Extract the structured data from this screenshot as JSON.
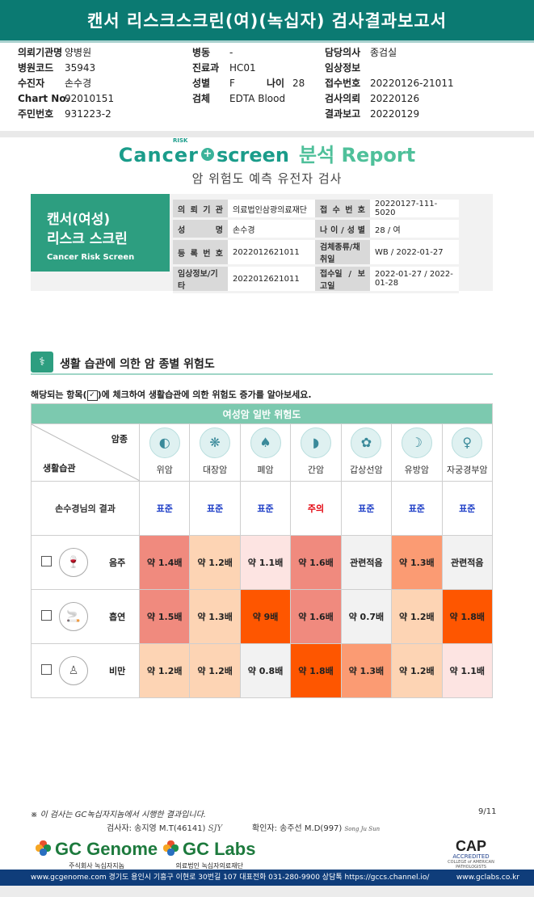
{
  "header": {
    "title": "캔서 리스크스크린(여)(녹십자) 검사결과보고서"
  },
  "patient_block": {
    "col1": [
      {
        "label": "의뢰기관명",
        "value": "양병원"
      },
      {
        "label": "병원코드",
        "value": "35943"
      },
      {
        "label": "수진자",
        "value": "손수경"
      },
      {
        "label": "Chart No.",
        "value": "92010151"
      },
      {
        "label": "주민번호",
        "value": "931223-2"
      }
    ],
    "col2": [
      {
        "label": "병동",
        "value": "-"
      },
      {
        "label": "진료과",
        "value": "HC01"
      },
      {
        "label": "성별",
        "value": "F"
      },
      {
        "label": "검체",
        "value": "EDTA Blood"
      }
    ],
    "age_label": "나이",
    "age_value": "28",
    "col3": [
      {
        "label": "담당의사",
        "value": "종검실"
      },
      {
        "label": "임상정보",
        "value": ""
      },
      {
        "label": "접수번호",
        "value": "20220126-21011"
      },
      {
        "label": "검사의뢰",
        "value": "20220126"
      },
      {
        "label": "결과보고",
        "value": "20220129"
      }
    ]
  },
  "report": {
    "logo_cancer": "Cancer",
    "logo_risk": "RISK",
    "logo_screen": "screen",
    "logo_report": "분석 Report",
    "subtitle": "암 위험도 예측 유전자 검사",
    "badge_title_1": "캔서(여성)",
    "badge_title_2": "리스크 스크린",
    "badge_sub": "Cancer Risk Screen",
    "info": [
      {
        "l1": "의 뢰 기 관",
        "v1": "의료법인삼광의료재단",
        "l2": "접 수 번 호",
        "v2": "20220127-111-5020"
      },
      {
        "l1": "성 명",
        "v1": "손수경",
        "l2": "나 이 / 성 별",
        "v2": "28 / 여"
      },
      {
        "l1": "등 록 번 호",
        "v1": "2022012621011",
        "l2": "검체종류/채취일",
        "v2": "WB / 2022-01-27"
      },
      {
        "l1": "임상정보/기타",
        "v1": "2022012621011",
        "l2": "접수일 / 보고일",
        "v2": "2022-01-27 / 2022-01-28"
      }
    ]
  },
  "section": {
    "title": "생활 습관에 의한 암 종별 위험도",
    "instr_pre": "해당되는 항목(",
    "instr_check": "✓",
    "instr_post": ")에 체크하여 생활습관에 의한 위험도 증가를 알아보세요."
  },
  "table": {
    "header": "여성암 일반 위험도",
    "corner_top": "암종",
    "corner_bottom": "생활습관",
    "cancers": [
      {
        "name": "위암",
        "icon": "stomach-icon",
        "glyph": "◐"
      },
      {
        "name": "대장암",
        "icon": "colon-icon",
        "glyph": "❋"
      },
      {
        "name": "폐암",
        "icon": "lung-icon",
        "glyph": "♠"
      },
      {
        "name": "간암",
        "icon": "liver-icon",
        "glyph": "◗"
      },
      {
        "name": "갑상선암",
        "icon": "thyroid-icon",
        "glyph": "✿"
      },
      {
        "name": "유방암",
        "icon": "breast-icon",
        "glyph": "☽"
      },
      {
        "name": "자궁경부암",
        "icon": "uterus-icon",
        "glyph": "♀"
      }
    ],
    "result_label": "손수경님의 결과",
    "results": [
      {
        "text": "표준",
        "status": "std"
      },
      {
        "text": "표준",
        "status": "std"
      },
      {
        "text": "표준",
        "status": "std"
      },
      {
        "text": "주의",
        "status": "warn"
      },
      {
        "text": "표준",
        "status": "std"
      },
      {
        "text": "표준",
        "status": "std"
      },
      {
        "text": "표준",
        "status": "std"
      }
    ],
    "habits": [
      {
        "name": "음주",
        "icon": "alcohol-icon",
        "glyph": "🍷",
        "cells": [
          {
            "text": "약 1.4배",
            "color": "#f08a7e"
          },
          {
            "text": "약 1.2배",
            "color": "#fdd4b4"
          },
          {
            "text": "약 1.1배",
            "color": "#fde4e2"
          },
          {
            "text": "약 1.6배",
            "color": "#f08a7e"
          },
          {
            "text": "관련적음",
            "color": "#f2f2f2"
          },
          {
            "text": "약 1.3배",
            "color": "#fb9b73"
          },
          {
            "text": "관련적음",
            "color": "#f2f2f2"
          }
        ]
      },
      {
        "name": "흡연",
        "icon": "smoking-icon",
        "glyph": "🚬",
        "cells": [
          {
            "text": "약 1.5배",
            "color": "#f08a7e"
          },
          {
            "text": "약 1.3배",
            "color": "#fdd4b4"
          },
          {
            "text": "약 9배",
            "color": "#fe5600"
          },
          {
            "text": "약 1.6배",
            "color": "#f08a7e"
          },
          {
            "text": "약 0.7배",
            "color": "#f2f2f2"
          },
          {
            "text": "약 1.2배",
            "color": "#fdd4b4"
          },
          {
            "text": "약 1.8배",
            "color": "#fe5600"
          }
        ]
      },
      {
        "name": "비만",
        "icon": "obesity-icon",
        "glyph": "♙",
        "cells": [
          {
            "text": "약 1.2배",
            "color": "#fdd4b4"
          },
          {
            "text": "약 1.2배",
            "color": "#fdd4b4"
          },
          {
            "text": "약 0.8배",
            "color": "#f2f2f2"
          },
          {
            "text": "약 1.8배",
            "color": "#fe5600"
          },
          {
            "text": "약 1.3배",
            "color": "#fb9b73"
          },
          {
            "text": "약 1.2배",
            "color": "#fdd4b4"
          },
          {
            "text": "약 1.1배",
            "color": "#fde4e2"
          }
        ]
      }
    ]
  },
  "footer": {
    "note": "※ 이 검사는 GC녹십자지놈에서 시행한 결과입니다.",
    "page": "9/11",
    "tester": "검사자: 송지영 M.T(46141)",
    "tester_sig": "SJY",
    "confirmer": "확인자: 송주선 M.D(997)",
    "confirmer_sig": "Song Ju Sun",
    "gcgenome": "GC Genome",
    "gcgenome_sub": "주식회사 녹십자지놈",
    "gclabs": "GC Labs",
    "gclabs_sub": "의료법인 녹십자의료재단",
    "cap_big": "CAP",
    "cap_accredited": "ACCREDITED",
    "cap_small": "COLLEGE of AMERICAN PATHOLOGISTS",
    "bar_left": "www.gcgenome.com 경기도 용인시 기흥구 이현로 30번길 107 대표전화 031-280-9900 상담톡 https://gccs.channel.io/",
    "bar_right": "www.gclabs.co.kr"
  }
}
